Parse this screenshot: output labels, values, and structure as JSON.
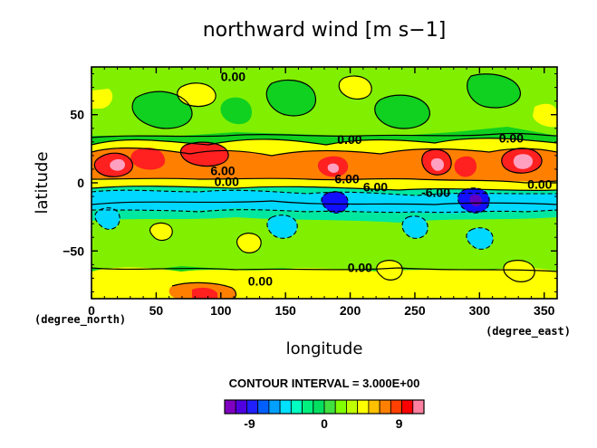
{
  "chart_data": {
    "type": "heatmap",
    "title": "northward wind [m s−1]",
    "xlabel": "longitude",
    "ylabel": "latitude",
    "x_unit": "(degree_east)",
    "y_unit": "(degree_north)",
    "xlim": [
      0,
      360
    ],
    "ylim": [
      -85,
      85
    ],
    "x_ticks": [
      0,
      50,
      100,
      150,
      200,
      250,
      300,
      350
    ],
    "y_ticks": [
      -50,
      0,
      50
    ],
    "contour_interval_text": "CONTOUR INTERVAL = 3.000E+00",
    "contour_labels": [
      {
        "text": "0.00",
        "x": 100,
        "y": 78
      },
      {
        "text": "0.00",
        "x": 190,
        "y": 32
      },
      {
        "text": "0.00",
        "x": 315,
        "y": 33
      },
      {
        "text": "6.00",
        "x": 92,
        "y": 9
      },
      {
        "text": "0.00",
        "x": 95,
        "y": 1
      },
      {
        "text": "6.00",
        "x": 188,
        "y": 3
      },
      {
        "text": "6.00",
        "x": 210,
        "y": -3
      },
      {
        "text": "-6.00",
        "x": 255,
        "y": -7
      },
      {
        "text": "0.00",
        "x": 337,
        "y": -1
      },
      {
        "text": "0.00",
        "x": 198,
        "y": -62
      },
      {
        "text": "0.00",
        "x": 121,
        "y": -72
      }
    ],
    "grid": false,
    "legend": "bottom",
    "colorbar": {
      "tick_labels": [
        "-9",
        "0",
        "9"
      ],
      "colors": [
        "#8000c0",
        "#5000e0",
        "#2020ff",
        "#0060ff",
        "#00a0ff",
        "#00e0ff",
        "#00ffc0",
        "#00f080",
        "#00e060",
        "#40e040",
        "#80ff00",
        "#c0ff00",
        "#ffff00",
        "#ffc000",
        "#ff8000",
        "#ff4000",
        "#ff0000",
        "#ff80a0"
      ]
    },
    "colors": {
      "strong_neg": "#1010ff",
      "neg": "#00d8ff",
      "weak_neg": "#00e8a0",
      "zero": "#10d020",
      "weak_pos": "#80f000",
      "pos": "#ffff00",
      "strong_pos": "#ff8000",
      "max_pos": "#ff2020",
      "peak": "#ffa0c0"
    }
  }
}
